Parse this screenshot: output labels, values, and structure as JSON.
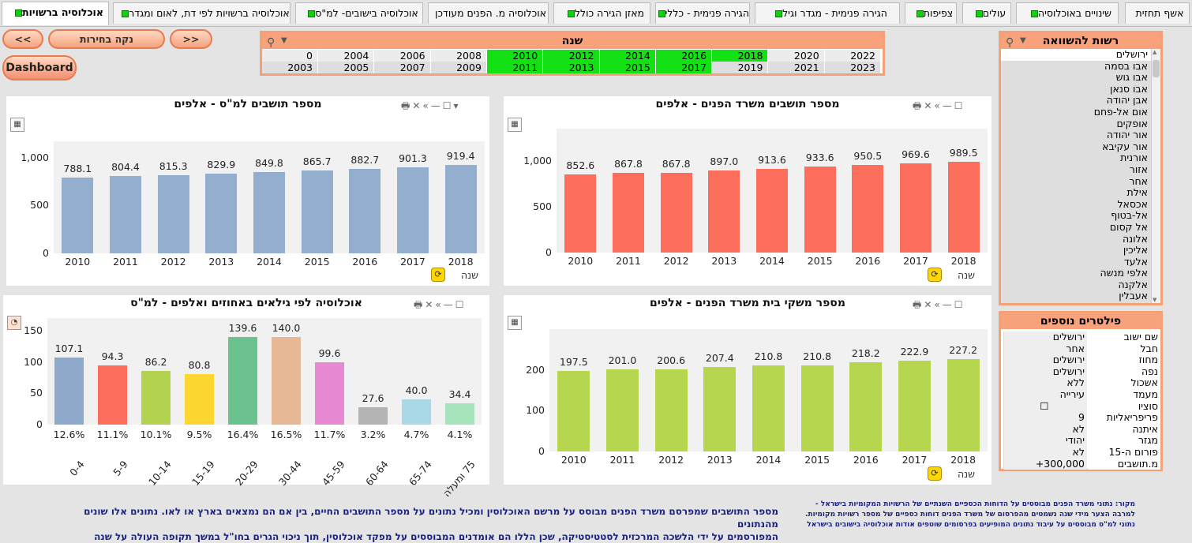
{
  "tabs": [
    {
      "label": "אשף תחזית",
      "active": false,
      "led": false
    },
    {
      "label": "שינויים באוכלוסיה",
      "active": false,
      "led": true
    },
    {
      "label": "עולים",
      "active": false,
      "led": true
    },
    {
      "label": "צפיפות",
      "active": false,
      "led": true
    },
    {
      "label": "הגירה פנימית - מגדר וגיל",
      "active": false,
      "led": true
    },
    {
      "label": "הגירה פנימית - כללי",
      "active": false,
      "led": true
    },
    {
      "label": "מאזן הגירה כולל",
      "active": false,
      "led": true
    },
    {
      "label": "אוכלוסיה מ. הפנים מעודכן",
      "active": false,
      "led": false
    },
    {
      "label": "אוכלוסיה בישובים- למ\"ס",
      "active": false,
      "led": true
    },
    {
      "label": "אוכלוסיה ברשויות לפי דת, לאום ומגדר",
      "active": false,
      "led": true
    },
    {
      "label": "אוכלוסיה ברשויות",
      "active": true,
      "led": true
    }
  ],
  "buttons": {
    "back": "<<",
    "clear": "נקה בחירות",
    "forward": ">>",
    "dashboard": "Dashboard"
  },
  "year_box": {
    "title": "שנה",
    "row1": [
      {
        "label": "2022",
        "selected": false
      },
      {
        "label": "2020",
        "selected": false
      },
      {
        "label": "2018",
        "selected": true
      },
      {
        "label": "2016",
        "selected": true
      },
      {
        "label": "2014",
        "selected": true
      },
      {
        "label": "2012",
        "selected": true
      },
      {
        "label": "2010",
        "selected": true
      },
      {
        "label": "2008",
        "selected": false
      },
      {
        "label": "2006",
        "selected": false
      },
      {
        "label": "2004",
        "selected": false
      },
      {
        "label": "0",
        "selected": false
      }
    ],
    "row2": [
      {
        "label": "2023",
        "selected": false
      },
      {
        "label": "2021",
        "selected": false
      },
      {
        "label": "2019",
        "selected": false
      },
      {
        "label": "2017",
        "selected": true
      },
      {
        "label": "2015",
        "selected": true
      },
      {
        "label": "2013",
        "selected": true
      },
      {
        "label": "2011",
        "selected": true
      },
      {
        "label": "2009",
        "selected": false
      },
      {
        "label": "2007",
        "selected": false
      },
      {
        "label": "2005",
        "selected": false
      },
      {
        "label": "2003",
        "selected": false
      }
    ]
  },
  "municipalities": {
    "title": "רשות להשוואה",
    "selected": "ירושלים",
    "items": [
      "ירושלים",
      "אבו בסמה",
      "אבו גוש",
      "אבו סנאן",
      "אבן יהודה",
      "אום אל-פחם",
      "אופקים",
      "אור יהודה",
      "אור עקיבא",
      "אורנית",
      "אזור",
      "אחר",
      "אילת",
      "אכסאל",
      "אל-בטוף",
      "אל קסום",
      "אלונה",
      "אליכין",
      "אלעד",
      "אלפי מנשה",
      "אלקנה",
      "אעבלין"
    ]
  },
  "filters": {
    "title": "פילטרים נוספים",
    "rows": [
      {
        "name": "שם ישוב",
        "value": "ירושלים"
      },
      {
        "name": "חבל",
        "value": "אחר"
      },
      {
        "name": "מחוז",
        "value": "ירושלים"
      },
      {
        "name": "נפה",
        "value": "ירושלים"
      },
      {
        "name": "אשכול",
        "value": "ללא"
      },
      {
        "name": "מעמד",
        "value": "עירייה"
      },
      {
        "name": "סוציו",
        "value": "☐"
      },
      {
        "name": "פריפריאליות",
        "value": "9"
      },
      {
        "name": "איתנה",
        "value": "לא"
      },
      {
        "name": "מגזר",
        "value": "יהודי"
      },
      {
        "name": "פורום ה-15",
        "value": "לא"
      },
      {
        "name": "מ.תושבים",
        "value": "300,000+"
      }
    ]
  },
  "charts": {
    "cbs": {
      "title": "מספר תושבים למ\"ס - אלפים",
      "xdim": "שנה"
    },
    "moi": {
      "title": "מספר תושבים משרד הפנים - אלפים",
      "xdim": "שנה"
    },
    "age": {
      "title": "אוכלוסיה לפי גילאים באחוזים ואלפים - למ\"ס"
    },
    "hh": {
      "title": "מספר משקי בית משרד הפנים - אלפים",
      "xdim": "שנה"
    }
  },
  "chart_data": [
    {
      "type": "bar",
      "title": "מספר תושבים למ\"ס - אלפים",
      "xlabel": "שנה",
      "categories": [
        "2010",
        "2011",
        "2012",
        "2013",
        "2014",
        "2015",
        "2016",
        "2017",
        "2018"
      ],
      "values": [
        788.1,
        804.4,
        815.3,
        829.9,
        849.8,
        865.7,
        882.7,
        901.3,
        919.4
      ],
      "value_labels": [
        "788.1",
        "804.4",
        "815.3",
        "829.9",
        "849.8",
        "865.7",
        "882.7",
        "901.3",
        "919.4"
      ],
      "yticks": [
        "0",
        "500",
        "1,000"
      ],
      "ytick_values": [
        0,
        500,
        1000
      ],
      "ylim": [
        0,
        1170
      ],
      "color": "#94afcd"
    },
    {
      "type": "bar",
      "title": "מספר תושבים משרד הפנים - אלפים",
      "xlabel": "שנה",
      "categories": [
        "2010",
        "2011",
        "2012",
        "2013",
        "2014",
        "2015",
        "2016",
        "2017",
        "2018"
      ],
      "values": [
        852.6,
        867.8,
        867.8,
        897.0,
        913.6,
        933.6,
        950.5,
        969.6,
        989.5
      ],
      "value_labels": [
        "852.6",
        "867.8",
        "867.8",
        "897.0",
        "913.6",
        "933.6",
        "950.5",
        "969.6",
        "989.5"
      ],
      "yticks": [
        "0",
        "500",
        "1,000"
      ],
      "ytick_values": [
        0,
        500,
        1000
      ],
      "ylim": [
        0,
        1350
      ],
      "color": "#fe6e5c"
    },
    {
      "type": "bar",
      "title": "אוכלוסיה לפי גילאים באחוזים ואלפים - למ\"ס",
      "categories": [
        "0-4",
        "5-9",
        "10-14",
        "15-19",
        "20-29",
        "30-44",
        "45-59",
        "60-64",
        "65-74",
        "75 ומעלה"
      ],
      "values": [
        107.1,
        94.3,
        86.2,
        80.8,
        139.6,
        140.0,
        99.6,
        27.6,
        40.0,
        34.4
      ],
      "value_labels": [
        "107.1",
        "94.3",
        "86.2",
        "80.8",
        "139.6",
        "140.0",
        "99.6",
        "27.6",
        "40.0",
        "34.4"
      ],
      "percent": [
        "12.6%",
        "11.1%",
        "10.1%",
        "9.5%",
        "16.4%",
        "16.5%",
        "11.7%",
        "3.2%",
        "4.7%",
        "4.1%"
      ],
      "colors": [
        "#8fa9ca",
        "#fe6e5c",
        "#b3d350",
        "#fed631",
        "#6cc28f",
        "#e6b895",
        "#e78ad1",
        "#b4b4b4",
        "#a9d9e6",
        "#a7e4be"
      ],
      "yticks": [
        "0",
        "50",
        "100",
        "150"
      ],
      "ytick_values": [
        0,
        50,
        100,
        150
      ],
      "ylim": [
        0,
        170
      ]
    },
    {
      "type": "bar",
      "title": "מספר משקי בית משרד הפנים - אלפים",
      "xlabel": "שנה",
      "categories": [
        "2010",
        "2011",
        "2012",
        "2013",
        "2014",
        "2015",
        "2016",
        "2017",
        "2018"
      ],
      "values": [
        197.5,
        201.0,
        200.6,
        207.4,
        210.8,
        210.8,
        218.2,
        222.9,
        227.2
      ],
      "value_labels": [
        "197.5",
        "201.0",
        "200.6",
        "207.4",
        "210.8",
        "210.8",
        "218.2",
        "222.9",
        "227.2"
      ],
      "yticks": [
        "0",
        "100",
        "200"
      ],
      "ytick_values": [
        0,
        100,
        200
      ],
      "ylim": [
        0,
        300
      ],
      "color": "#b6d64f"
    }
  ],
  "footer": {
    "right_lines": [
      "מקור: נתוני משרד הפנים מבוססים על  הדוחות הכספיים השנתיים של הרשויות המקומיות בישראל -",
      "למרבה הצער מידי שנה נשמטים מהפרסום של משרד הפנים דוחות כספיים של מספר רשויות מקומיות.",
      "נתוני למ\"ס מבוססים על עיבוד נתונים המופיעים בפרסומים  שוטפים אודות אוכלוסיה בישובים בישראל"
    ],
    "center_lines": [
      "מספר התושבים שמפרסם משרד הפנים מבוסס על מרשם האוכלוסין ומכיל נתונים על מספר התושבים החיים, בין אם הם נמצאים בארץ או לאו. נתונים אלו שונים מהנתונים",
      "המפורסמים על ידי הלשכה המרכזית לסטטיסטיקה, שכן הללו הם אומדנים המבוססים על מפקד אוכלוסין, תוך ניכוי הגרים בחו\"ל במשך תקופה העולה על שנה"
    ]
  }
}
